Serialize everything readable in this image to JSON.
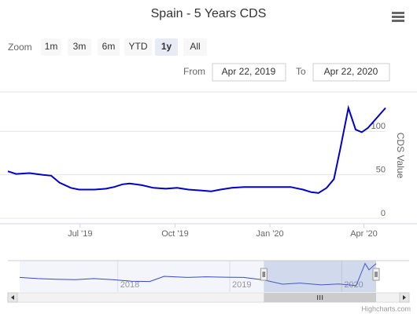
{
  "chart_data": {
    "type": "line",
    "title": "Spain - 5 Years CDS",
    "y_label": "CDS Value",
    "color": "#0000cc",
    "zoom": {
      "label": "Zoom",
      "buttons": [
        "1m",
        "3m",
        "6m",
        "YTD",
        "1y",
        "All"
      ],
      "selected": 4
    },
    "range": {
      "from_label": "From",
      "from": "Apr 22, 2019",
      "to_label": "To",
      "to": "Apr 22, 2020"
    },
    "credits": "Highcharts.com",
    "x": [
      "2019-04-22",
      "2019-04-30",
      "2019-05-13",
      "2019-05-26",
      "2019-06-03",
      "2019-06-11",
      "2019-06-22",
      "2019-06-30",
      "2019-07-15",
      "2019-07-26",
      "2019-08-03",
      "2019-08-11",
      "2019-08-18",
      "2019-08-30",
      "2019-09-10",
      "2019-09-22",
      "2019-10-03",
      "2019-10-14",
      "2019-10-26",
      "2019-11-05",
      "2019-11-14",
      "2019-11-25",
      "2019-12-07",
      "2019-12-22",
      "2020-01-06",
      "2020-01-21",
      "2020-02-02",
      "2020-02-10",
      "2020-02-17",
      "2020-02-25",
      "2020-03-03",
      "2020-03-09",
      "2020-03-17",
      "2020-03-24",
      "2020-03-30",
      "2020-04-05",
      "2020-04-22"
    ],
    "values": [
      54,
      51,
      52,
      50,
      49,
      41,
      35,
      33,
      33,
      34,
      36,
      39,
      40,
      38,
      35,
      34,
      35,
      33,
      32,
      31,
      33,
      35,
      36,
      36,
      36,
      36,
      33,
      30,
      29,
      35,
      45,
      79,
      127,
      102,
      99,
      104,
      127
    ],
    "xlim": [
      "2019-04-22",
      "2020-04-22"
    ],
    "xticks": [
      {
        "value": "2019-07-01",
        "label": "Jul '19"
      },
      {
        "value": "2019-10-01",
        "label": "Oct '19"
      },
      {
        "value": "2020-01-01",
        "label": "Jan '20"
      },
      {
        "value": "2020-04-01",
        "label": "Apr '20"
      }
    ],
    "ylim": [
      0,
      150
    ],
    "yticks": [
      0,
      50,
      100
    ],
    "grid": true,
    "navigator": {
      "color": "#3344cc",
      "x": [
        "2017-02-15",
        "2017-04-15",
        "2017-06-15",
        "2017-08-15",
        "2017-10-15",
        "2017-12-15",
        "2018-02-15",
        "2018-04-15",
        "2018-06-01",
        "2018-08-15",
        "2018-10-15",
        "2018-12-15",
        "2019-02-15",
        "2019-04-22",
        "2019-06-22",
        "2019-08-18",
        "2019-10-26",
        "2019-12-22",
        "2020-02-17",
        "2020-03-17",
        "2020-03-30",
        "2020-04-22"
      ],
      "values": [
        65,
        60,
        57,
        55,
        60,
        55,
        48,
        47,
        70,
        65,
        68,
        66,
        65,
        54,
        35,
        40,
        32,
        36,
        29,
        127,
        99,
        127
      ],
      "xlim": [
        "2017-02-15",
        "2020-04-22"
      ],
      "ylim": [
        0,
        140
      ],
      "xticks": [
        {
          "value": "2018-01-01",
          "label": "2018"
        },
        {
          "value": "2019-01-01",
          "label": "2019"
        },
        {
          "value": "2020-01-01",
          "label": "2020"
        }
      ]
    }
  }
}
